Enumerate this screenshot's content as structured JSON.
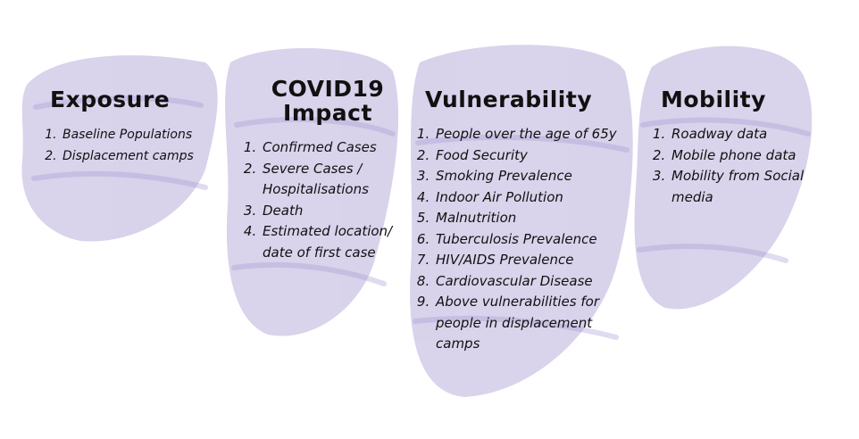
{
  "colors": {
    "brush": "#b9aedb",
    "text": "#111111"
  },
  "columns": [
    {
      "title": "Exposure",
      "items": [
        "Baseline Populations",
        "Displacement camps"
      ]
    },
    {
      "title": "COVID19\nImpact",
      "items": [
        "Confirmed Cases",
        "Severe Cases / Hospitalisations",
        "Death",
        "Estimated location/ date of first case"
      ]
    },
    {
      "title": "Vulnerability",
      "items": [
        "People over the age of 65y",
        "Food Security",
        "Smoking Prevalence",
        "Indoor Air Pollution",
        "Malnutrition",
        "Tuberculosis Prevalence",
        "HIV/AIDS Prevalence",
        "Cardiovascular Disease",
        "Above vulnerabilities for people in displacement camps"
      ]
    },
    {
      "title": "Mobility",
      "items": [
        "Roadway data",
        "Mobile phone data",
        "Mobility from Social media"
      ]
    }
  ]
}
